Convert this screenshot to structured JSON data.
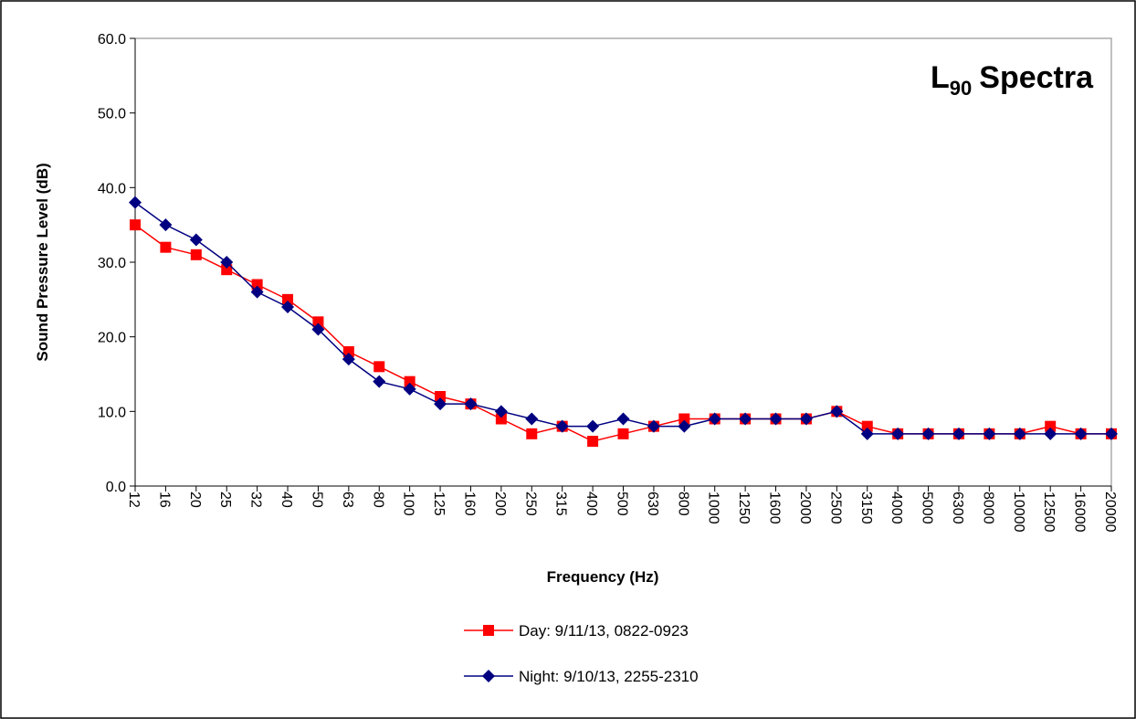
{
  "chart_data": {
    "type": "line",
    "title": [
      "L",
      "90",
      "Spectra"
    ],
    "x_label": "Frequency (Hz)",
    "y_label": "Sound Pressure Level (dB)",
    "categories": [
      "12",
      "16",
      "20",
      "25",
      "32",
      "40",
      "50",
      "63",
      "80",
      "100",
      "125",
      "160",
      "200",
      "250",
      "315",
      "400",
      "500",
      "630",
      "800",
      "1000",
      "1250",
      "1600",
      "2000",
      "2500",
      "3150",
      "4000",
      "5000",
      "6300",
      "8000",
      "10000",
      "12500",
      "16000",
      "20000"
    ],
    "series": [
      {
        "name": "Day: 9/11/13, 0822-0923",
        "color": "#ff0000",
        "marker": "square",
        "values": [
          35,
          32,
          31,
          29,
          27,
          25,
          22,
          18,
          16,
          14,
          12,
          11,
          9,
          7,
          8,
          6,
          7,
          8,
          9,
          9,
          9,
          9,
          9,
          10,
          8,
          7,
          7,
          7,
          7,
          7,
          8,
          7,
          7
        ]
      },
      {
        "name": "Night: 9/10/13, 2255-2310",
        "color": "#000080",
        "marker": "diamond",
        "values": [
          38,
          35,
          33,
          30,
          26,
          24,
          21,
          17,
          14,
          13,
          11,
          11,
          10,
          9,
          8,
          8,
          9,
          8,
          8,
          9,
          9,
          9,
          9,
          10,
          7,
          7,
          7,
          7,
          7,
          7,
          7,
          7,
          7
        ]
      }
    ],
    "ylim": [
      0,
      60
    ],
    "yticks": [
      {
        "value": 0,
        "label": "0.0"
      },
      {
        "value": 10,
        "label": "10.0"
      },
      {
        "value": 20,
        "label": "20.0"
      },
      {
        "value": 30,
        "label": "30.0"
      },
      {
        "value": 40,
        "label": "40.0"
      },
      {
        "value": 50,
        "label": "50.0"
      },
      {
        "value": 60,
        "label": "60.0"
      }
    ],
    "grid": false
  }
}
